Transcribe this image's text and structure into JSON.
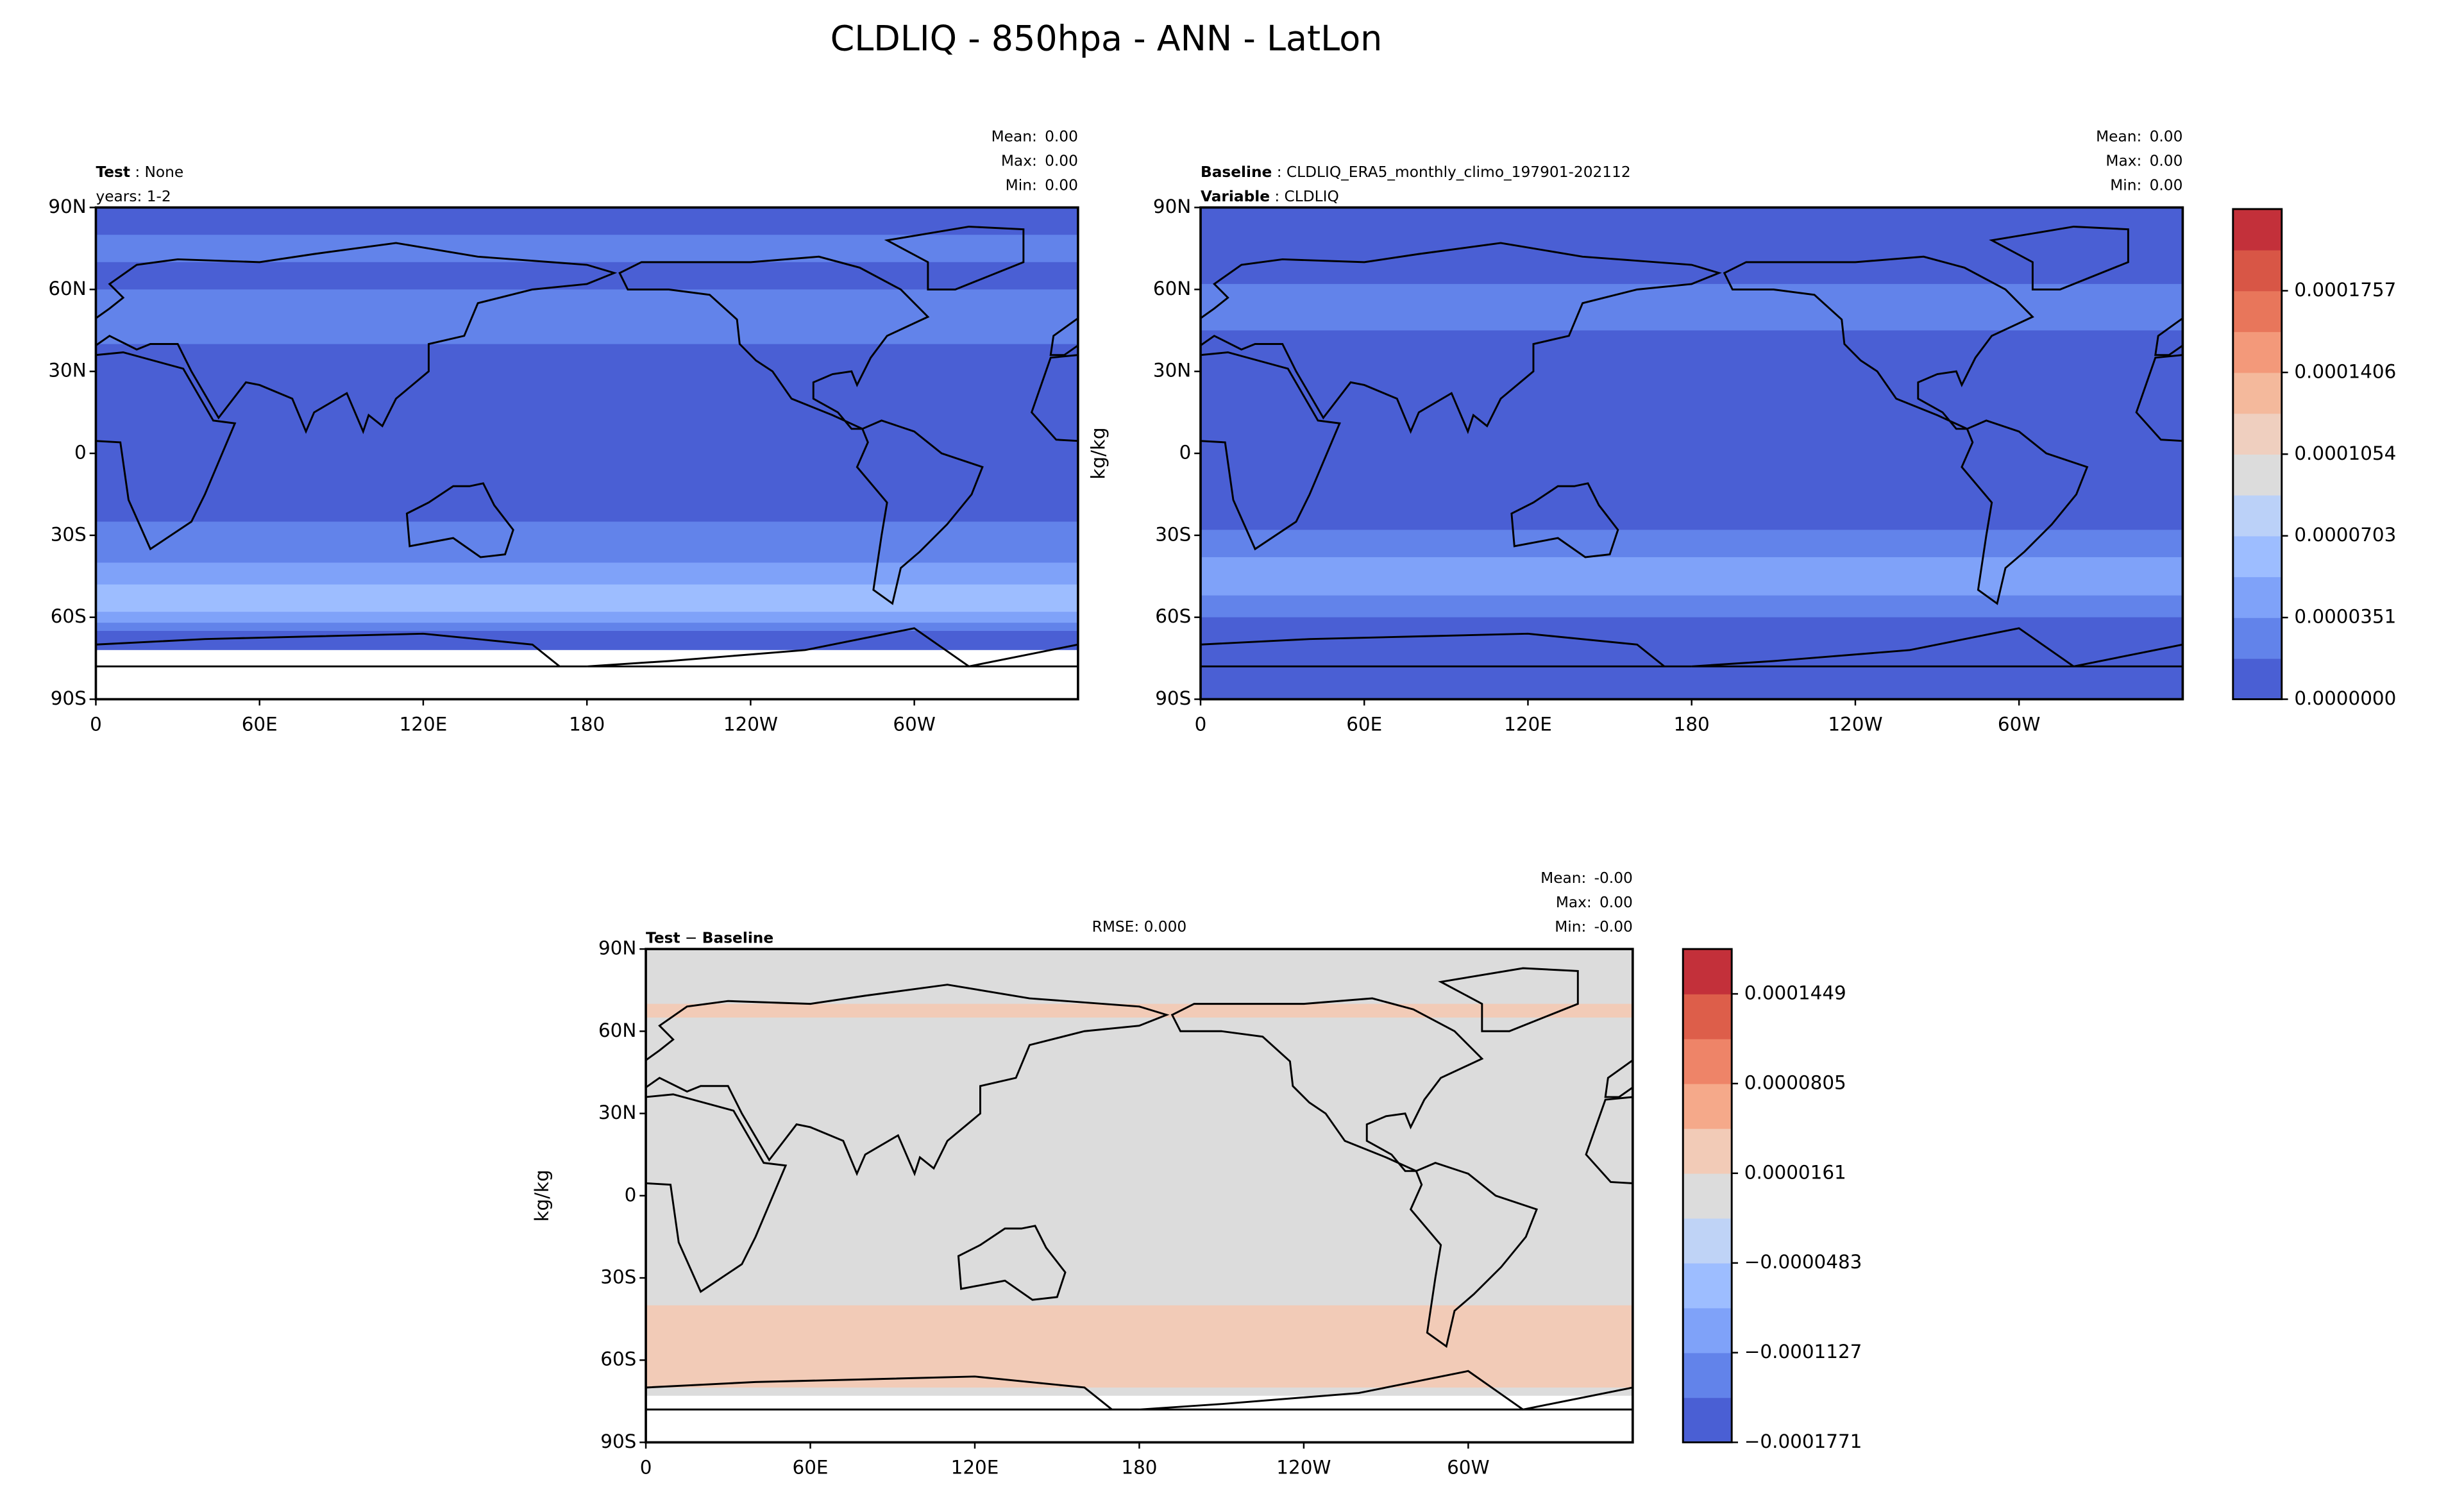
{
  "title": "CLDLIQ - 850hpa - ANN - LatLon",
  "lat_ticks": [
    "90N",
    "60N",
    "30N",
    "0",
    "30S",
    "60S",
    "90S"
  ],
  "lon_ticks": [
    "0",
    "60E",
    "120E",
    "180",
    "120W",
    "60W"
  ],
  "panels": [
    {
      "header": [
        [
          {
            "text": "Test",
            "bold": true
          },
          {
            "text": ":"
          },
          {
            "text": "None"
          }
        ],
        [
          {
            "text": "years: 1-2"
          }
        ]
      ],
      "stats": [
        {
          "label": "Mean:",
          "value": "0.00"
        },
        {
          "label": "Max:",
          "value": "0.00"
        },
        {
          "label": "Min:",
          "value": "0.00"
        }
      ]
    },
    {
      "header": [
        [
          {
            "text": "Baseline",
            "bold": true
          },
          {
            "text": ":"
          },
          {
            "text": "CLDLIQ_ERA5_monthly_climo_197901-202112"
          }
        ],
        [
          {
            "text": "Variable",
            "bold": true
          },
          {
            "text": ":"
          },
          {
            "text": "CLDLIQ"
          }
        ]
      ],
      "stats": [
        {
          "label": "Mean:",
          "value": "0.00"
        },
        {
          "label": "Max:",
          "value": "0.00"
        },
        {
          "label": "Min:",
          "value": "0.00"
        }
      ],
      "units": "kg/kg",
      "colorbar": {
        "colors": [
          "#4a5fd4",
          "#6283ea",
          "#7fa2f9",
          "#9dbdff",
          "#bbd1f8",
          "#dcdcdc",
          "#efcfbf",
          "#f4b99c",
          "#f3997a",
          "#e8765b",
          "#d85646",
          "#c3303a"
        ],
        "ticks": [
          "0.0000000",
          "0.0000351",
          "0.0000703",
          "0.0001054",
          "0.0001406",
          "0.0001757"
        ]
      }
    },
    {
      "header": [
        [
          {
            "text": "Test",
            "bold": true
          },
          {
            "text": "−"
          },
          {
            "text": "Baseline",
            "bold": true
          }
        ]
      ],
      "center": "RMSE: 0.000",
      "stats": [
        {
          "label": "Mean:",
          "value": "-0.00"
        },
        {
          "label": "Max:",
          "value": "0.00"
        },
        {
          "label": "Min:",
          "value": "-0.00"
        }
      ],
      "units": "kg/kg",
      "colorbar": {
        "colors": [
          "#4a5fd4",
          "#6283ea",
          "#7fa2f9",
          "#9dbdff",
          "#bfd3f6",
          "#dcdcdc",
          "#f2cbb7",
          "#f5a98a",
          "#ee8468",
          "#dd5e4a",
          "#c3303a"
        ],
        "ticks": [
          "−0.0001771",
          "−0.0001127",
          "−0.0000483",
          "0.0000161",
          "0.0000805",
          "0.0001449"
        ]
      }
    }
  ]
}
